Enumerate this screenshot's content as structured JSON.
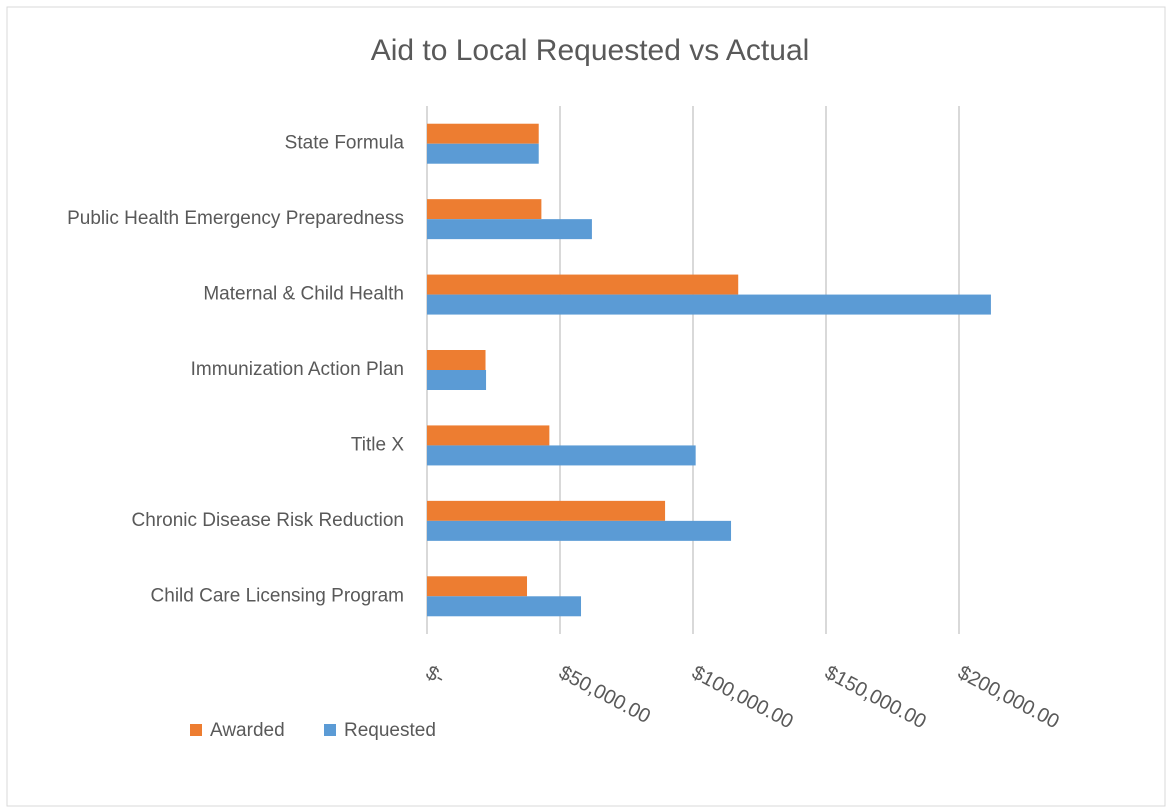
{
  "chart_data": {
    "type": "barh",
    "title": "Aid to Local Requested vs Actual",
    "categories": [
      "State Formula",
      "Public Health Emergency Preparedness",
      "Maternal & Child Health",
      "Immunization Action Plan",
      "Title X",
      "Chronic Disease Risk Reduction",
      "Child Care Licensing Program"
    ],
    "series": [
      {
        "name": "Awarded",
        "color": "#ed7d31",
        "values": [
          42000,
          43000,
          117000,
          22000,
          46000,
          89500,
          37600
        ]
      },
      {
        "name": "Requested",
        "color": "#5b9bd5",
        "values": [
          42000,
          62000,
          212000,
          22200,
          101000,
          114300,
          57900
        ]
      }
    ],
    "xlim": [
      0,
      200000
    ],
    "xticks": [
      {
        "value": 0,
        "label": "$-"
      },
      {
        "value": 50000,
        "label": "$50,000.00"
      },
      {
        "value": 100000,
        "label": "$100,000.00"
      },
      {
        "value": 150000,
        "label": "$150,000.00"
      },
      {
        "value": 200000,
        "label": "$200,000.00"
      }
    ],
    "grid": true,
    "legend": "bottom-left"
  }
}
